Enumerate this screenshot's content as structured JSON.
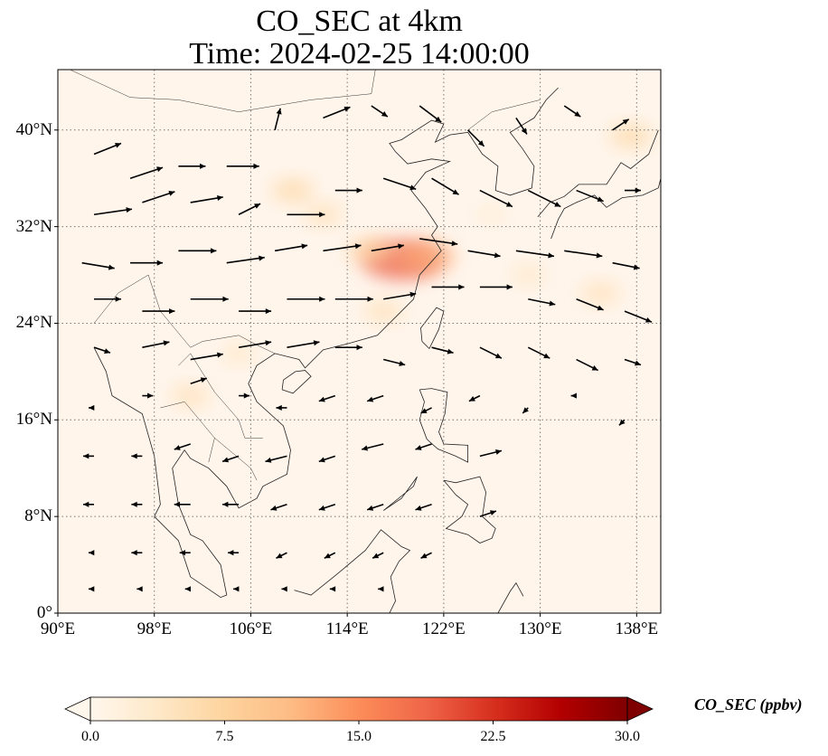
{
  "title": {
    "line1": "CO_SEC at 4km",
    "line2": "Time: 2024-02-25 14:00:00"
  },
  "map": {
    "projection": "PlateCarree",
    "lon_range": [
      90,
      140
    ],
    "lat_range": [
      0,
      45
    ],
    "gridlines": "dotted",
    "background_color": "#fff5eb",
    "lat_ticks": [
      "0°",
      "8°N",
      "16°N",
      "24°N",
      "32°N",
      "40°N"
    ],
    "lon_ticks": [
      "90°E",
      "98°E",
      "106°E",
      "114°E",
      "122°E",
      "130°E",
      "138°E"
    ],
    "vector_field": "wind arrows, predominantly westerly north of ~20°N, easterly/north-easterly south of ~18°N"
  },
  "colorbar": {
    "label": "CO_SEC (ppbv)",
    "colormap": "OrRd",
    "min": 0.0,
    "max": 30.0,
    "extend": "both",
    "tick_labels": [
      "0.0",
      "7.5",
      "15.0",
      "22.5",
      "30.0"
    ],
    "colors": [
      "#fff7ec",
      "#fee8c8",
      "#fdd49e",
      "#fdbb84",
      "#fc8d59",
      "#ef6548",
      "#d7301f",
      "#b30000",
      "#7f0000"
    ]
  },
  "chart_data": {
    "type": "heatmap",
    "title": "CO_SEC at 4km",
    "subtitle": "Time: 2024-02-25 14:00:00",
    "variable": "CO_SEC",
    "units": "ppbv",
    "xlim": [
      90,
      140
    ],
    "ylim": [
      0,
      45
    ],
    "color_range": [
      0,
      30
    ],
    "hotspots": [
      {
        "lon": 118.5,
        "lat": 29.2,
        "value": 14
      },
      {
        "lon": 120.5,
        "lat": 29.5,
        "value": 9
      },
      {
        "lon": 116,
        "lat": 30,
        "value": 6
      },
      {
        "lon": 109.5,
        "lat": 35,
        "value": 5
      },
      {
        "lon": 112,
        "lat": 33,
        "value": 4
      },
      {
        "lon": 117,
        "lat": 25,
        "value": 4
      },
      {
        "lon": 135,
        "lat": 26.5,
        "value": 4
      },
      {
        "lon": 137.5,
        "lat": 39.5,
        "value": 5
      },
      {
        "lon": 101,
        "lat": 18,
        "value": 4
      },
      {
        "lon": 105,
        "lat": 21.5,
        "value": 3
      },
      {
        "lon": 129,
        "lat": 28,
        "value": 3
      },
      {
        "lon": 126,
        "lat": 33,
        "value": 2
      }
    ],
    "winds": [
      {
        "lon": 93,
        "lat": 38,
        "u": 5,
        "v": 2
      },
      {
        "lon": 96,
        "lat": 36,
        "u": 6,
        "v": 2
      },
      {
        "lon": 100,
        "lat": 37,
        "u": 5,
        "v": 0
      },
      {
        "lon": 104,
        "lat": 37,
        "u": 6,
        "v": 0
      },
      {
        "lon": 108,
        "lat": 40,
        "u": 1,
        "v": 4
      },
      {
        "lon": 112,
        "lat": 41,
        "u": 5,
        "v": 2
      },
      {
        "lon": 116,
        "lat": 42,
        "u": 3,
        "v": -2
      },
      {
        "lon": 120,
        "lat": 42,
        "u": 4,
        "v": -3
      },
      {
        "lon": 124,
        "lat": 40,
        "u": 3,
        "v": -3
      },
      {
        "lon": 128,
        "lat": 41,
        "u": 2,
        "v": -3
      },
      {
        "lon": 132,
        "lat": 42,
        "u": 3,
        "v": -2
      },
      {
        "lon": 136,
        "lat": 40,
        "u": 3,
        "v": 2
      },
      {
        "lon": 93,
        "lat": 33,
        "u": 7,
        "v": 1
      },
      {
        "lon": 97,
        "lat": 34,
        "u": 6,
        "v": 2
      },
      {
        "lon": 101,
        "lat": 34,
        "u": 6,
        "v": 1
      },
      {
        "lon": 105,
        "lat": 33,
        "u": 4,
        "v": 2
      },
      {
        "lon": 109,
        "lat": 33,
        "u": 7,
        "v": 0
      },
      {
        "lon": 113,
        "lat": 35,
        "u": 5,
        "v": 0
      },
      {
        "lon": 117,
        "lat": 36,
        "u": 6,
        "v": -2
      },
      {
        "lon": 121,
        "lat": 36,
        "u": 5,
        "v": -3
      },
      {
        "lon": 125,
        "lat": 35,
        "u": 6,
        "v": -3
      },
      {
        "lon": 129,
        "lat": 35,
        "u": 6,
        "v": -3
      },
      {
        "lon": 133,
        "lat": 35,
        "u": 5,
        "v": -2
      },
      {
        "lon": 137,
        "lat": 35,
        "u": 3,
        "v": 0
      },
      {
        "lon": 92,
        "lat": 29,
        "u": 6,
        "v": -1
      },
      {
        "lon": 96,
        "lat": 29,
        "u": 6,
        "v": 0
      },
      {
        "lon": 100,
        "lat": 30,
        "u": 7,
        "v": 0
      },
      {
        "lon": 104,
        "lat": 29,
        "u": 7,
        "v": 1
      },
      {
        "lon": 108,
        "lat": 30,
        "u": 6,
        "v": 1
      },
      {
        "lon": 112,
        "lat": 30,
        "u": 7,
        "v": 1
      },
      {
        "lon": 116,
        "lat": 30,
        "u": 6,
        "v": 1
      },
      {
        "lon": 120,
        "lat": 31,
        "u": 7,
        "v": -1
      },
      {
        "lon": 124,
        "lat": 30,
        "u": 6,
        "v": -1
      },
      {
        "lon": 128,
        "lat": 30,
        "u": 7,
        "v": -1
      },
      {
        "lon": 132,
        "lat": 30,
        "u": 7,
        "v": -1
      },
      {
        "lon": 136,
        "lat": 29,
        "u": 5,
        "v": -1
      },
      {
        "lon": 93,
        "lat": 26,
        "u": 5,
        "v": 0
      },
      {
        "lon": 97,
        "lat": 25,
        "u": 6,
        "v": 0
      },
      {
        "lon": 101,
        "lat": 26,
        "u": 7,
        "v": 0
      },
      {
        "lon": 105,
        "lat": 25,
        "u": 6,
        "v": 0
      },
      {
        "lon": 109,
        "lat": 26,
        "u": 7,
        "v": 0
      },
      {
        "lon": 113,
        "lat": 26,
        "u": 7,
        "v": 0
      },
      {
        "lon": 117,
        "lat": 26,
        "u": 6,
        "v": 1
      },
      {
        "lon": 121,
        "lat": 27,
        "u": 6,
        "v": 0
      },
      {
        "lon": 125,
        "lat": 27,
        "u": 6,
        "v": 0
      },
      {
        "lon": 129,
        "lat": 26,
        "u": 5,
        "v": -1
      },
      {
        "lon": 133,
        "lat": 26,
        "u": 5,
        "v": -2
      },
      {
        "lon": 137,
        "lat": 25,
        "u": 5,
        "v": -2
      },
      {
        "lon": 93,
        "lat": 22,
        "u": 3,
        "v": -1
      },
      {
        "lon": 97,
        "lat": 22,
        "u": 5,
        "v": 1
      },
      {
        "lon": 101,
        "lat": 21,
        "u": 6,
        "v": 1
      },
      {
        "lon": 105,
        "lat": 22,
        "u": 6,
        "v": 1
      },
      {
        "lon": 109,
        "lat": 22,
        "u": 6,
        "v": 1
      },
      {
        "lon": 113,
        "lat": 22,
        "u": 5,
        "v": 0
      },
      {
        "lon": 117,
        "lat": 21,
        "u": 4,
        "v": -1
      },
      {
        "lon": 121,
        "lat": 22,
        "u": 4,
        "v": -1
      },
      {
        "lon": 125,
        "lat": 22,
        "u": 4,
        "v": -2
      },
      {
        "lon": 129,
        "lat": 22,
        "u": 4,
        "v": -2
      },
      {
        "lon": 133,
        "lat": 21,
        "u": 4,
        "v": -2
      },
      {
        "lon": 137,
        "lat": 21,
        "u": 3,
        "v": -1
      },
      {
        "lon": 93,
        "lat": 17,
        "u": -1,
        "v": 0
      },
      {
        "lon": 97,
        "lat": 18,
        "u": 2,
        "v": 0
      },
      {
        "lon": 101,
        "lat": 19,
        "u": 3,
        "v": 1
      },
      {
        "lon": 105,
        "lat": 18,
        "u": 2,
        "v": 0
      },
      {
        "lon": 109,
        "lat": 17,
        "u": -2,
        "v": 0
      },
      {
        "lon": 113,
        "lat": 18,
        "u": -3,
        "v": -1
      },
      {
        "lon": 117,
        "lat": 18,
        "u": -3,
        "v": -1
      },
      {
        "lon": 121,
        "lat": 17,
        "u": -2,
        "v": -1
      },
      {
        "lon": 125,
        "lat": 18,
        "u": -2,
        "v": -1
      },
      {
        "lon": 129,
        "lat": 17,
        "u": -1,
        "v": -1
      },
      {
        "lon": 133,
        "lat": 18,
        "u": -1,
        "v": 0
      },
      {
        "lon": 137,
        "lat": 16,
        "u": -1,
        "v": -1
      },
      {
        "lon": 93,
        "lat": 13,
        "u": -2,
        "v": 0
      },
      {
        "lon": 97,
        "lat": 13,
        "u": -2,
        "v": 0
      },
      {
        "lon": 101,
        "lat": 14,
        "u": -3,
        "v": -1
      },
      {
        "lon": 105,
        "lat": 13,
        "u": -3,
        "v": -1
      },
      {
        "lon": 109,
        "lat": 13,
        "u": -4,
        "v": -1
      },
      {
        "lon": 113,
        "lat": 13,
        "u": -3,
        "v": -1
      },
      {
        "lon": 117,
        "lat": 14,
        "u": -4,
        "v": -1
      },
      {
        "lon": 121,
        "lat": 14,
        "u": -3,
        "v": -1
      },
      {
        "lon": 125,
        "lat": 13,
        "u": 4,
        "v": 1
      },
      {
        "lon": 93,
        "lat": 9,
        "u": -2,
        "v": 0
      },
      {
        "lon": 97,
        "lat": 9,
        "u": -2,
        "v": 0
      },
      {
        "lon": 101,
        "lat": 9,
        "u": -3,
        "v": 0
      },
      {
        "lon": 105,
        "lat": 9,
        "u": -3,
        "v": 0
      },
      {
        "lon": 109,
        "lat": 9,
        "u": -3,
        "v": -1
      },
      {
        "lon": 113,
        "lat": 9,
        "u": -3,
        "v": -1
      },
      {
        "lon": 117,
        "lat": 9,
        "u": -3,
        "v": -1
      },
      {
        "lon": 121,
        "lat": 9,
        "u": -3,
        "v": -1
      },
      {
        "lon": 125,
        "lat": 8,
        "u": 3,
        "v": 1
      },
      {
        "lon": 93,
        "lat": 5,
        "u": -1,
        "v": 0
      },
      {
        "lon": 97,
        "lat": 5,
        "u": -2,
        "v": 0
      },
      {
        "lon": 101,
        "lat": 5,
        "u": -2,
        "v": 0
      },
      {
        "lon": 105,
        "lat": 5,
        "u": -2,
        "v": 0
      },
      {
        "lon": 109,
        "lat": 5,
        "u": -2,
        "v": -1
      },
      {
        "lon": 113,
        "lat": 5,
        "u": -2,
        "v": -1
      },
      {
        "lon": 117,
        "lat": 5,
        "u": -2,
        "v": -1
      },
      {
        "lon": 121,
        "lat": 5,
        "u": -2,
        "v": -1
      },
      {
        "lon": 93,
        "lat": 2,
        "u": -1,
        "v": 0
      },
      {
        "lon": 97,
        "lat": 2,
        "u": -1,
        "v": 0
      },
      {
        "lon": 101,
        "lat": 2,
        "u": -1,
        "v": 0
      },
      {
        "lon": 105,
        "lat": 2,
        "u": -1,
        "v": 0
      },
      {
        "lon": 109,
        "lat": 2,
        "u": -1,
        "v": 0
      },
      {
        "lon": 113,
        "lat": 2,
        "u": -1,
        "v": 0
      },
      {
        "lon": 117,
        "lat": 2,
        "u": -1,
        "v": 0
      }
    ]
  }
}
